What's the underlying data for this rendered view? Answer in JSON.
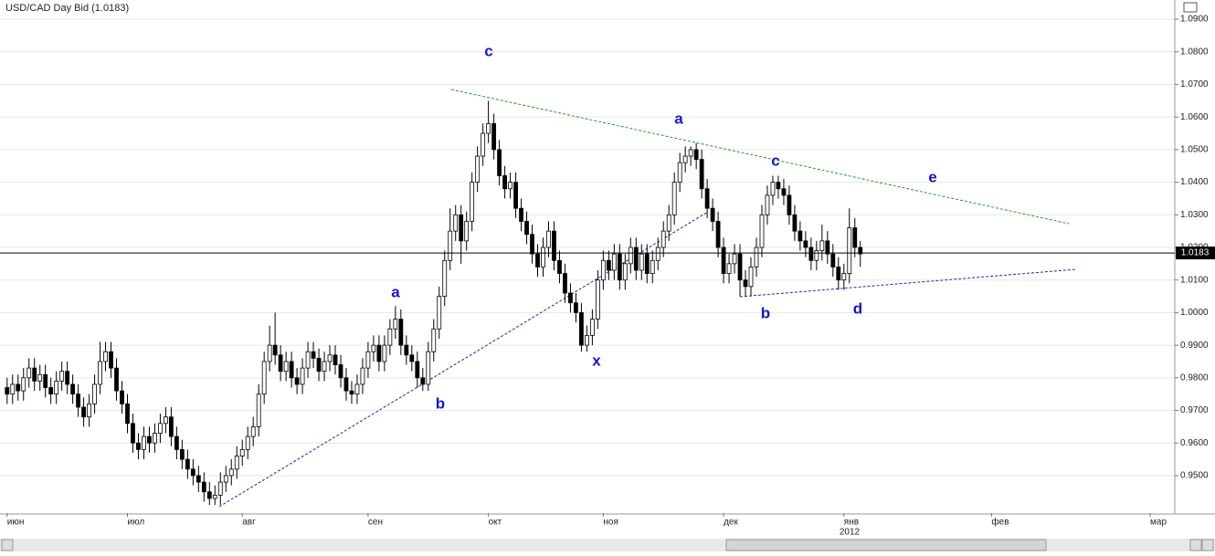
{
  "chart_data": {
    "type": "candlestick",
    "title": "USD/CAD Day Bid (1.0183)",
    "last_price": 1.0183,
    "year_label": "2012",
    "ylim": [
      0.9385,
      1.0959
    ],
    "yticks": [
      {
        "value": 0.95,
        "label": "0.9500"
      },
      {
        "value": 0.96,
        "label": "0.9600"
      },
      {
        "value": 0.97,
        "label": "0.9700"
      },
      {
        "value": 0.98,
        "label": "0.9800"
      },
      {
        "value": 0.99,
        "label": "0.9900"
      },
      {
        "value": 1.0,
        "label": "1.0000"
      },
      {
        "value": 1.01,
        "label": "1.0100"
      },
      {
        "value": 1.02,
        "label": "1.0200"
      },
      {
        "value": 1.03,
        "label": "1.0300"
      },
      {
        "value": 1.04,
        "label": "1.0400"
      },
      {
        "value": 1.05,
        "label": "1.0500"
      },
      {
        "value": 1.06,
        "label": "1.0600"
      },
      {
        "value": 1.07,
        "label": "1.0700"
      },
      {
        "value": 1.08,
        "label": "1.0800"
      },
      {
        "value": 1.09,
        "label": "1.0900"
      }
    ],
    "xlim": [
      -1.3,
      213.5
    ],
    "xticks": [
      {
        "value": 0,
        "label": "июн"
      },
      {
        "value": 22,
        "label": "июл"
      },
      {
        "value": 43,
        "label": "авг"
      },
      {
        "value": 66,
        "label": "сен"
      },
      {
        "value": 88,
        "label": "окт"
      },
      {
        "value": 109,
        "label": "ноя"
      },
      {
        "value": 131,
        "label": "дек"
      },
      {
        "value": 153,
        "label": "янв"
      },
      {
        "value": 180,
        "label": "фев"
      },
      {
        "value": 209,
        "label": "мар"
      }
    ],
    "grid": true,
    "up_color": "#ffffff",
    "down_color": "#000000",
    "annotations": [
      {
        "text": "c"
      },
      {
        "text": "a"
      },
      {
        "text": "c"
      },
      {
        "text": "e"
      },
      {
        "text": "a"
      },
      {
        "text": "b"
      },
      {
        "text": "x"
      },
      {
        "text": "b"
      },
      {
        "text": "d"
      }
    ],
    "x": [
      0,
      1,
      2,
      3,
      4,
      5,
      6,
      7,
      8,
      9,
      10,
      11,
      12,
      13,
      14,
      15,
      16,
      17,
      18,
      19,
      20,
      21,
      22,
      23,
      24,
      25,
      26,
      27,
      28,
      29,
      30,
      31,
      32,
      33,
      34,
      35,
      36,
      37,
      38,
      39,
      40,
      41,
      42,
      43,
      44,
      45,
      46,
      47,
      48,
      49,
      50,
      51,
      52,
      53,
      54,
      55,
      56,
      57,
      58,
      59,
      60,
      61,
      62,
      63,
      64,
      65,
      66,
      67,
      68,
      69,
      70,
      71,
      72,
      73,
      74,
      75,
      76,
      77,
      78,
      79,
      80,
      81,
      82,
      83,
      84,
      85,
      86,
      87,
      88,
      89,
      90,
      91,
      92,
      93,
      94,
      95,
      96,
      97,
      98,
      99,
      100,
      101,
      102,
      103,
      104,
      105,
      106,
      107,
      108,
      109,
      110,
      111,
      112,
      113,
      114,
      115,
      116,
      117,
      118,
      119,
      120,
      121,
      122,
      123,
      124,
      125,
      126,
      127,
      128,
      129,
      130,
      131,
      132,
      133,
      134,
      135,
      136,
      137,
      138,
      139,
      140,
      141,
      142,
      143,
      144,
      145,
      146,
      147,
      148,
      149,
      150,
      151,
      152,
      153,
      154,
      155,
      156
    ],
    "open": [
      0.977,
      0.975,
      0.978,
      0.976,
      0.98,
      0.983,
      0.979,
      0.981,
      0.977,
      0.975,
      0.979,
      0.982,
      0.978,
      0.975,
      0.971,
      0.968,
      0.972,
      0.978,
      0.985,
      0.988,
      0.983,
      0.976,
      0.972,
      0.966,
      0.96,
      0.958,
      0.962,
      0.96,
      0.963,
      0.966,
      0.968,
      0.962,
      0.958,
      0.955,
      0.952,
      0.95,
      0.948,
      0.945,
      0.943,
      0.944,
      0.948,
      0.95,
      0.952,
      0.956,
      0.958,
      0.962,
      0.965,
      0.975,
      0.985,
      0.99,
      0.987,
      0.982,
      0.985,
      0.98,
      0.978,
      0.983,
      0.988,
      0.986,
      0.982,
      0.985,
      0.987,
      0.984,
      0.98,
      0.976,
      0.975,
      0.978,
      0.983,
      0.988,
      0.99,
      0.985,
      0.99,
      0.995,
      0.998,
      0.99,
      0.987,
      0.985,
      0.98,
      0.978,
      0.988,
      0.995,
      1.005,
      1.016,
      1.025,
      1.03,
      1.022,
      1.028,
      1.04,
      1.048,
      1.055,
      1.058,
      1.05,
      1.042,
      1.038,
      1.04,
      1.032,
      1.028,
      1.024,
      1.018,
      1.014,
      1.02,
      1.025,
      1.016,
      1.012,
      1.006,
      1.003,
      1.0,
      0.99,
      0.993,
      0.998,
      1.01,
      1.016,
      1.013,
      1.018,
      1.01,
      1.015,
      1.02,
      1.013,
      1.018,
      1.012,
      1.016,
      1.02,
      1.025,
      1.03,
      1.04,
      1.046,
      1.048,
      1.05,
      1.047,
      1.038,
      1.032,
      1.028,
      1.02,
      1.012,
      1.015,
      1.018,
      1.01,
      1.008,
      1.014,
      1.02,
      1.03,
      1.036,
      1.04,
      1.038,
      1.036,
      1.03,
      1.025,
      1.022,
      1.02,
      1.016,
      1.019,
      1.022,
      1.018,
      1.014,
      1.01,
      1.012,
      1.026,
      1.02
    ],
    "high": [
      0.98,
      0.981,
      0.981,
      0.983,
      0.986,
      0.986,
      0.984,
      0.984,
      0.98,
      0.982,
      0.985,
      0.985,
      0.981,
      0.978,
      0.974,
      0.975,
      0.981,
      0.991,
      0.991,
      0.991,
      0.986,
      0.979,
      0.975,
      0.969,
      0.963,
      0.965,
      0.965,
      0.966,
      0.969,
      0.971,
      0.971,
      0.965,
      0.961,
      0.958,
      0.955,
      0.953,
      0.951,
      0.948,
      0.947,
      0.951,
      0.953,
      0.955,
      0.959,
      0.961,
      0.965,
      0.968,
      0.978,
      0.988,
      0.996,
      1.0,
      0.99,
      0.988,
      0.988,
      0.983,
      0.986,
      0.991,
      0.991,
      0.989,
      0.988,
      0.99,
      0.99,
      0.987,
      0.983,
      0.979,
      0.981,
      0.986,
      0.991,
      0.993,
      0.993,
      0.993,
      0.998,
      1.002,
      1.001,
      0.993,
      0.99,
      0.988,
      0.983,
      0.991,
      0.998,
      1.008,
      1.019,
      1.032,
      1.033,
      1.033,
      1.031,
      1.043,
      1.051,
      1.058,
      1.065,
      1.061,
      1.053,
      1.045,
      1.043,
      1.043,
      1.035,
      1.031,
      1.027,
      1.021,
      1.023,
      1.028,
      1.028,
      1.019,
      1.015,
      1.009,
      1.006,
      1.003,
      0.996,
      1.001,
      1.013,
      1.019,
      1.019,
      1.021,
      1.021,
      1.018,
      1.023,
      1.023,
      1.021,
      1.021,
      1.019,
      1.023,
      1.028,
      1.033,
      1.043,
      1.049,
      1.051,
      1.051,
      1.052,
      1.05,
      1.041,
      1.035,
      1.031,
      1.023,
      1.018,
      1.021,
      1.021,
      1.013,
      1.017,
      1.023,
      1.033,
      1.039,
      1.042,
      1.042,
      1.041,
      1.039,
      1.033,
      1.028,
      1.025,
      1.023,
      1.022,
      1.027,
      1.025,
      1.021,
      1.017,
      1.015,
      1.032,
      1.029,
      1.022
    ],
    "low": [
      0.972,
      0.972,
      0.973,
      0.973,
      0.977,
      0.976,
      0.976,
      0.974,
      0.972,
      0.972,
      0.976,
      0.975,
      0.972,
      0.968,
      0.965,
      0.965,
      0.969,
      0.975,
      0.982,
      0.98,
      0.973,
      0.969,
      0.963,
      0.957,
      0.955,
      0.955,
      0.957,
      0.957,
      0.96,
      0.963,
      0.959,
      0.955,
      0.952,
      0.949,
      0.947,
      0.945,
      0.942,
      0.941,
      0.941,
      0.941,
      0.945,
      0.947,
      0.949,
      0.953,
      0.955,
      0.959,
      0.962,
      0.972,
      0.982,
      0.984,
      0.979,
      0.979,
      0.977,
      0.975,
      0.975,
      0.98,
      0.983,
      0.979,
      0.979,
      0.982,
      0.981,
      0.977,
      0.973,
      0.972,
      0.972,
      0.975,
      0.98,
      0.985,
      0.982,
      0.982,
      0.987,
      0.992,
      0.987,
      0.984,
      0.982,
      0.977,
      0.976,
      0.976,
      0.985,
      0.992,
      1.002,
      1.013,
      1.022,
      1.015,
      1.019,
      1.025,
      1.037,
      1.045,
      1.052,
      1.047,
      1.039,
      1.035,
      1.035,
      1.029,
      1.025,
      1.021,
      1.015,
      1.011,
      1.011,
      1.017,
      1.013,
      1.009,
      1.003,
      1.0,
      0.997,
      0.988,
      0.988,
      0.99,
      0.995,
      1.007,
      1.01,
      1.01,
      1.007,
      1.007,
      1.012,
      1.01,
      1.01,
      1.009,
      1.009,
      1.013,
      1.017,
      1.022,
      1.027,
      1.037,
      1.043,
      1.045,
      1.044,
      1.035,
      1.029,
      1.025,
      1.017,
      1.009,
      1.009,
      1.012,
      1.005,
      1.005,
      1.005,
      1.011,
      1.017,
      1.027,
      1.033,
      1.035,
      1.033,
      1.027,
      1.022,
      1.019,
      1.017,
      1.013,
      1.013,
      1.016,
      1.015,
      1.011,
      1.007,
      1.007,
      1.009,
      1.017,
      1.014
    ],
    "close": [
      0.975,
      0.978,
      0.976,
      0.98,
      0.983,
      0.979,
      0.981,
      0.977,
      0.975,
      0.979,
      0.982,
      0.978,
      0.975,
      0.971,
      0.968,
      0.972,
      0.978,
      0.985,
      0.988,
      0.983,
      0.976,
      0.972,
      0.966,
      0.96,
      0.958,
      0.962,
      0.96,
      0.963,
      0.966,
      0.968,
      0.962,
      0.958,
      0.955,
      0.952,
      0.95,
      0.948,
      0.945,
      0.943,
      0.944,
      0.948,
      0.95,
      0.952,
      0.956,
      0.958,
      0.962,
      0.965,
      0.975,
      0.985,
      0.99,
      0.987,
      0.982,
      0.985,
      0.98,
      0.978,
      0.983,
      0.988,
      0.986,
      0.982,
      0.985,
      0.987,
      0.984,
      0.98,
      0.976,
      0.975,
      0.978,
      0.983,
      0.988,
      0.99,
      0.985,
      0.99,
      0.995,
      0.998,
      0.99,
      0.987,
      0.985,
      0.98,
      0.978,
      0.988,
      0.995,
      1.005,
      1.016,
      1.025,
      1.03,
      1.022,
      1.028,
      1.04,
      1.048,
      1.055,
      1.058,
      1.05,
      1.042,
      1.038,
      1.04,
      1.032,
      1.028,
      1.024,
      1.018,
      1.014,
      1.02,
      1.025,
      1.016,
      1.012,
      1.006,
      1.003,
      1.0,
      0.99,
      0.993,
      0.998,
      1.01,
      1.016,
      1.013,
      1.018,
      1.01,
      1.015,
      1.02,
      1.013,
      1.018,
      1.012,
      1.016,
      1.02,
      1.025,
      1.03,
      1.04,
      1.046,
      1.048,
      1.05,
      1.047,
      1.038,
      1.032,
      1.028,
      1.02,
      1.012,
      1.015,
      1.018,
      1.01,
      1.008,
      1.014,
      1.02,
      1.03,
      1.036,
      1.04,
      1.038,
      1.036,
      1.03,
      1.025,
      1.022,
      1.02,
      1.016,
      1.019,
      1.022,
      1.018,
      1.014,
      1.01,
      1.012,
      1.026,
      1.02,
      1.018
    ]
  }
}
